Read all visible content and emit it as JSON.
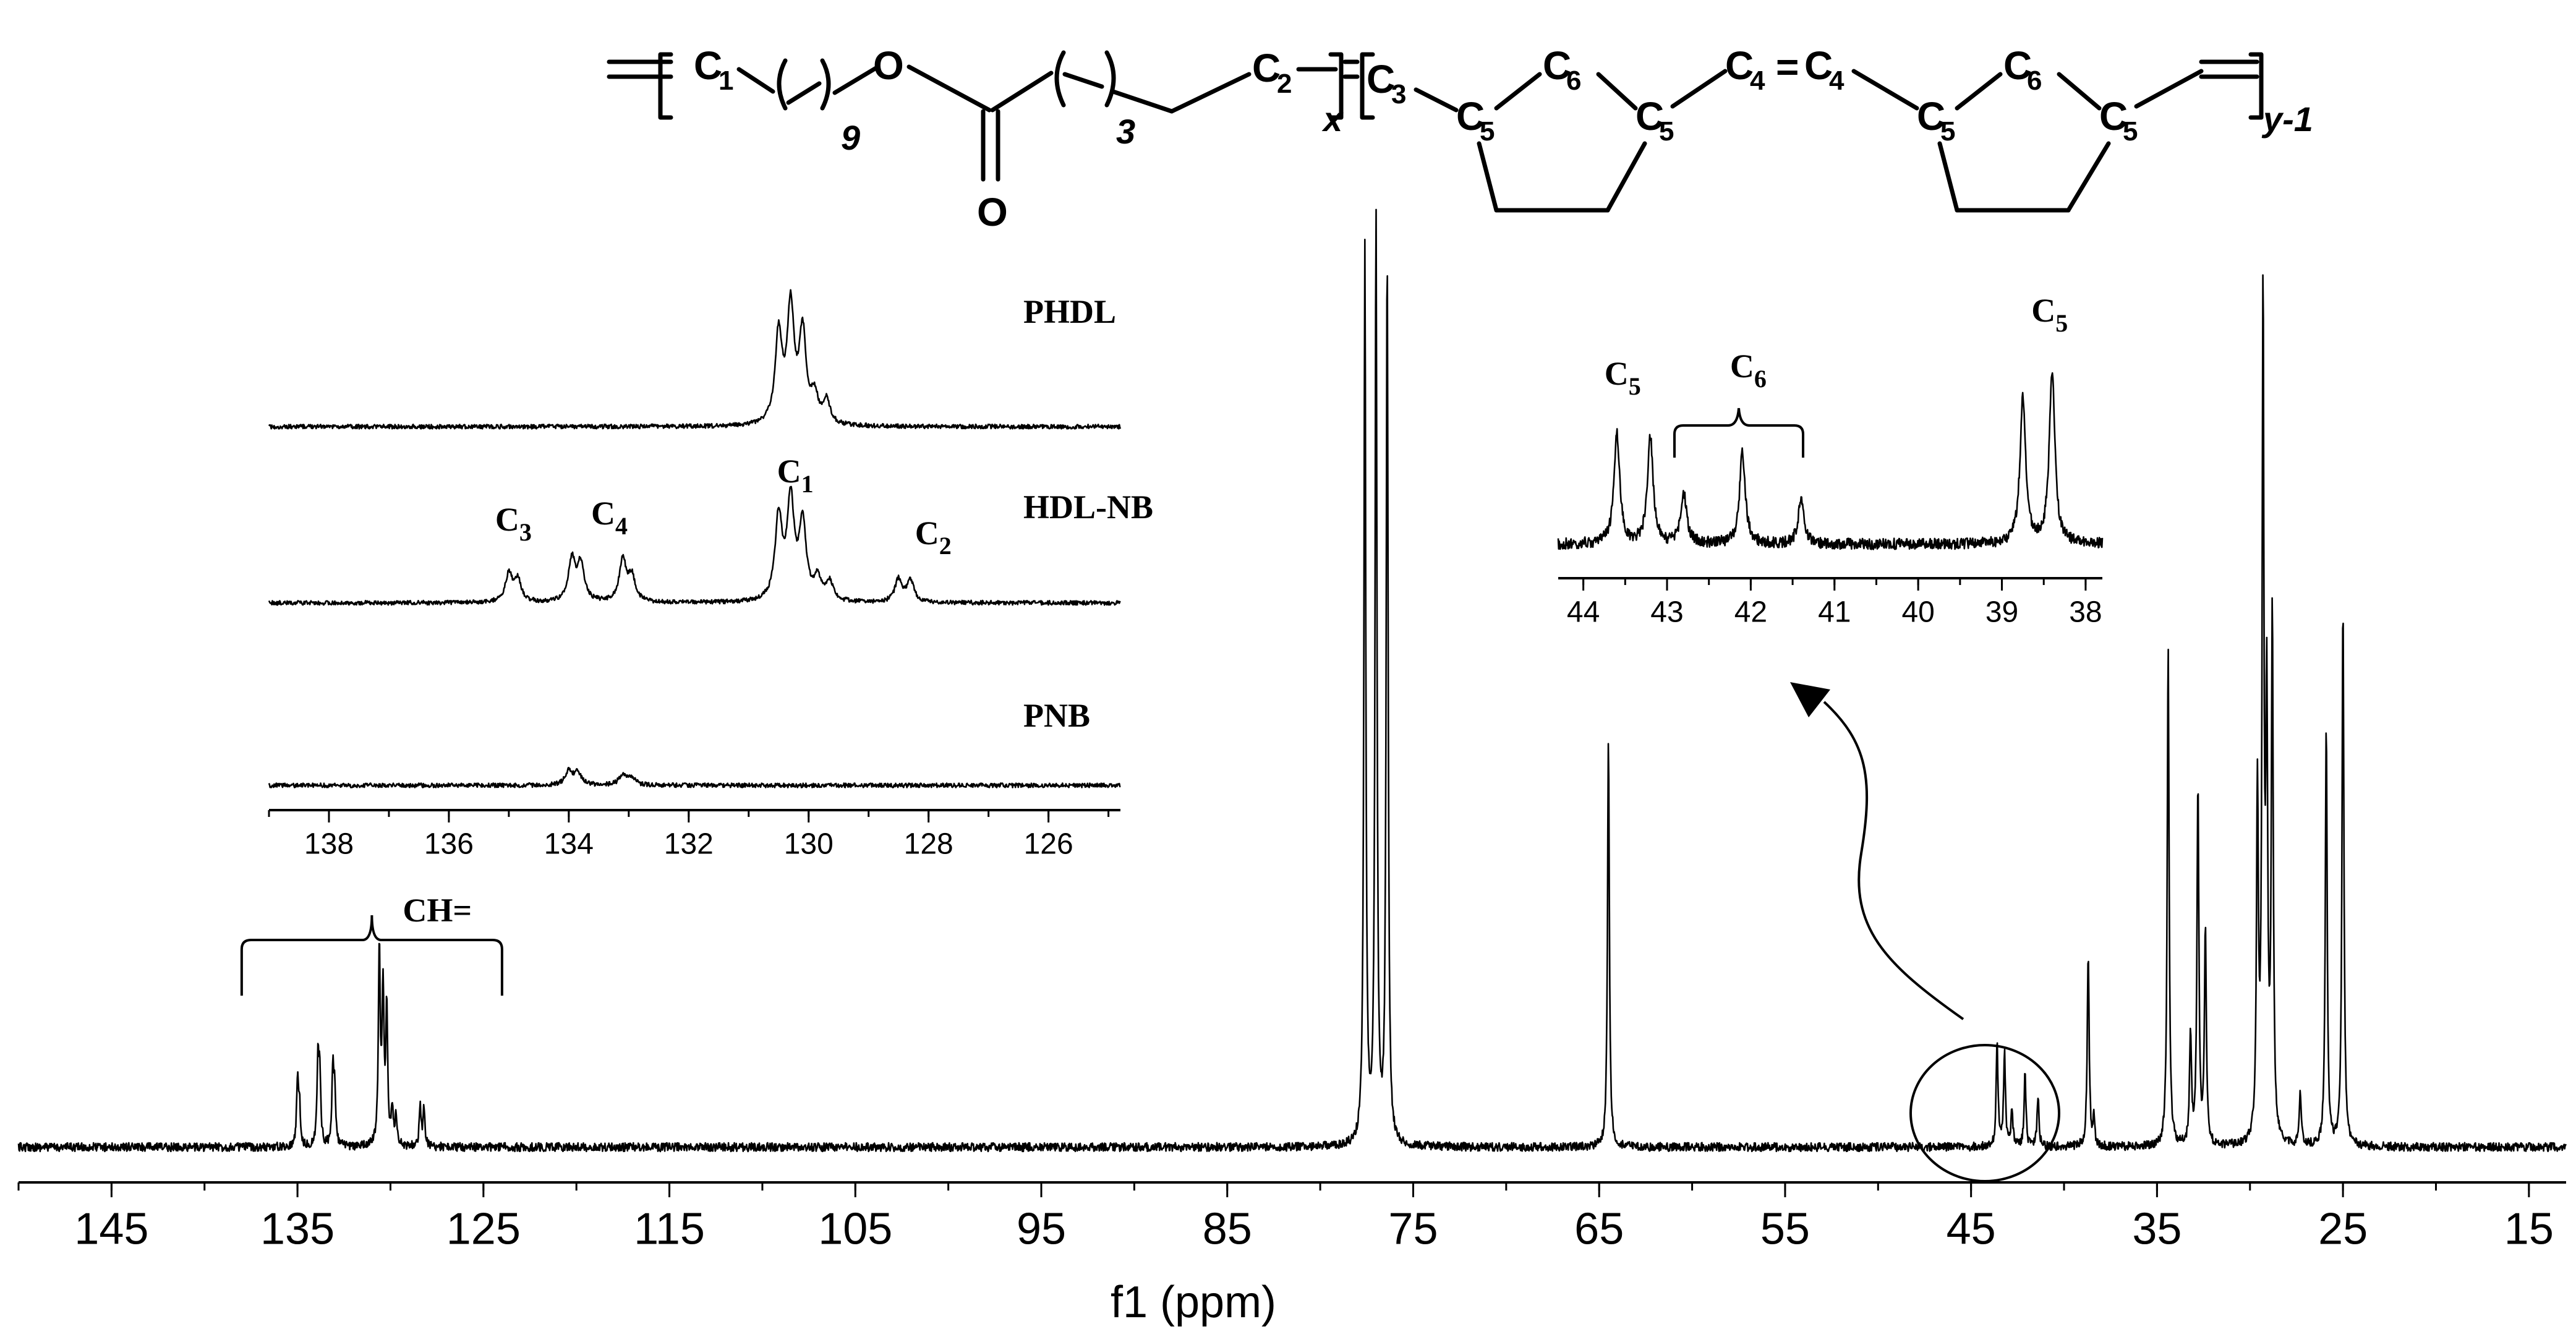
{
  "chart_data": [
    {
      "id": "main",
      "type": "line",
      "xlabel": "f1 (ppm)",
      "xlim": [
        150,
        13
      ],
      "x_reversed": true,
      "xticks": [
        145,
        135,
        125,
        115,
        105,
        95,
        85,
        75,
        65,
        55,
        45,
        35,
        25,
        15
      ],
      "peaks": [
        {
          "ppm": 135.0,
          "h": 0.12
        },
        {
          "ppm": 134.9,
          "h": 0.08
        },
        {
          "ppm": 133.9,
          "h": 0.16
        },
        {
          "ppm": 133.8,
          "h": 0.14
        },
        {
          "ppm": 133.1,
          "h": 0.15
        },
        {
          "ppm": 133.0,
          "h": 0.1
        },
        {
          "ppm": 130.6,
          "h": 0.38
        },
        {
          "ppm": 130.4,
          "h": 0.3
        },
        {
          "ppm": 130.2,
          "h": 0.26
        },
        {
          "ppm": 129.9,
          "h": 0.07
        },
        {
          "ppm": 129.7,
          "h": 0.06
        },
        {
          "ppm": 128.4,
          "h": 0.08
        },
        {
          "ppm": 128.2,
          "h": 0.07
        },
        {
          "ppm": 77.6,
          "h": 1.74
        },
        {
          "ppm": 77.0,
          "h": 1.8
        },
        {
          "ppm": 76.4,
          "h": 1.74
        },
        {
          "ppm": 64.5,
          "h": 0.79
        },
        {
          "ppm": 43.6,
          "h": 0.2
        },
        {
          "ppm": 43.2,
          "h": 0.18
        },
        {
          "ppm": 42.8,
          "h": 0.07
        },
        {
          "ppm": 42.1,
          "h": 0.14
        },
        {
          "ppm": 41.4,
          "h": 0.1
        },
        {
          "ppm": 38.7,
          "h": 0.38
        },
        {
          "ppm": 38.4,
          "h": 0.05
        },
        {
          "ppm": 34.4,
          "h": 0.98
        },
        {
          "ppm": 33.2,
          "h": 0.22
        },
        {
          "ppm": 32.8,
          "h": 0.7
        },
        {
          "ppm": 32.4,
          "h": 0.42
        },
        {
          "ppm": 29.6,
          "h": 0.68
        },
        {
          "ppm": 29.3,
          "h": 1.62
        },
        {
          "ppm": 29.1,
          "h": 0.82
        },
        {
          "ppm": 28.8,
          "h": 1.02
        },
        {
          "ppm": 27.3,
          "h": 0.11
        },
        {
          "ppm": 25.9,
          "h": 0.82
        },
        {
          "ppm": 25.0,
          "h": 1.06
        }
      ],
      "annotations": [
        {
          "text": "CH=",
          "ppm_range": [
            138,
            124
          ]
        }
      ]
    },
    {
      "id": "inset_alkene",
      "type": "line",
      "xlim": [
        139,
        124.8
      ],
      "x_reversed": true,
      "xticks": [
        138,
        136,
        134,
        132,
        130,
        128,
        126
      ],
      "series": [
        {
          "name": "PHDL",
          "peaks": [
            {
              "ppm": 130.5,
              "h": 0.58
            },
            {
              "ppm": 130.3,
              "h": 0.74
            },
            {
              "ppm": 130.1,
              "h": 0.58
            },
            {
              "ppm": 129.9,
              "h": 0.17
            },
            {
              "ppm": 129.7,
              "h": 0.15
            }
          ]
        },
        {
          "name": "HDL-NB",
          "peaks": [
            {
              "ppm": 135.0,
              "h": 0.18
            },
            {
              "ppm": 134.85,
              "h": 0.14
            },
            {
              "ppm": 133.95,
              "h": 0.27
            },
            {
              "ppm": 133.8,
              "h": 0.24
            },
            {
              "ppm": 133.1,
              "h": 0.27
            },
            {
              "ppm": 132.95,
              "h": 0.16
            },
            {
              "ppm": 130.5,
              "h": 0.54
            },
            {
              "ppm": 130.3,
              "h": 0.64
            },
            {
              "ppm": 130.1,
              "h": 0.5
            },
            {
              "ppm": 129.85,
              "h": 0.14
            },
            {
              "ppm": 129.65,
              "h": 0.12
            },
            {
              "ppm": 128.5,
              "h": 0.15
            },
            {
              "ppm": 128.3,
              "h": 0.14
            }
          ],
          "labels": [
            {
              "text": "C",
              "sub": "3",
              "ppm": 135.0
            },
            {
              "text": "C",
              "sub": "4",
              "ppm": 133.4
            },
            {
              "text": "C",
              "sub": "1",
              "ppm": 130.3
            },
            {
              "text": "C",
              "sub": "2",
              "ppm": 128.0
            }
          ]
        },
        {
          "name": "PNB",
          "peaks": [
            {
              "ppm": 134.0,
              "h": 0.09
            },
            {
              "ppm": 133.85,
              "h": 0.08
            },
            {
              "ppm": 133.1,
              "h": 0.07
            },
            {
              "ppm": 132.95,
              "h": 0.05
            }
          ]
        }
      ]
    },
    {
      "id": "inset_aliphatic",
      "type": "line",
      "xlim": [
        44.3,
        37.8
      ],
      "x_reversed": true,
      "xticks": [
        44,
        43,
        42,
        41,
        40,
        39,
        38
      ],
      "peaks": [
        {
          "ppm": 43.6,
          "h": 0.55
        },
        {
          "ppm": 43.2,
          "h": 0.52
        },
        {
          "ppm": 42.8,
          "h": 0.25
        },
        {
          "ppm": 42.1,
          "h": 0.45
        },
        {
          "ppm": 41.4,
          "h": 0.22
        },
        {
          "ppm": 38.75,
          "h": 0.72
        },
        {
          "ppm": 38.4,
          "h": 0.85
        }
      ],
      "labels": [
        {
          "text": "C",
          "sub": "5",
          "ppm": 43.6
        },
        {
          "text": "C",
          "sub": "6",
          "ppm": 42.1
        },
        {
          "text": "C",
          "sub": "5",
          "ppm": 38.5
        }
      ]
    }
  ],
  "structure": {
    "atoms": [
      "C",
      "1",
      "9",
      "O",
      "3",
      "C",
      "2",
      "x",
      "C",
      "3",
      "C",
      "6",
      "C",
      "4",
      "=",
      "C",
      "4",
      "C",
      "6",
      "C",
      "5",
      "C",
      "5",
      "C",
      "5",
      "C",
      "5",
      "O",
      "y-1"
    ]
  }
}
